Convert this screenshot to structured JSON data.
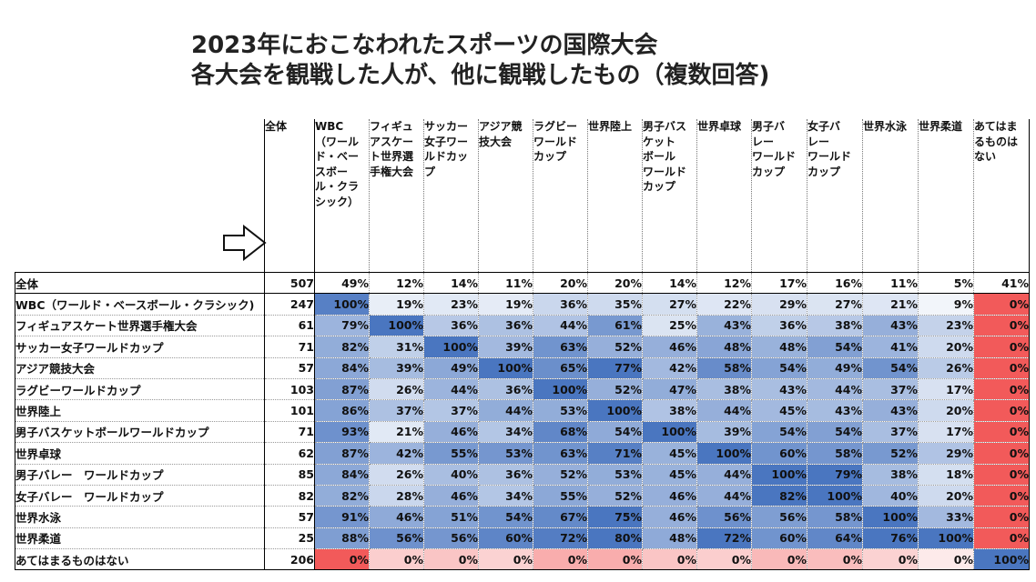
{
  "title": {
    "line1": "2023年におこなわれたスポーツの国際大会",
    "line2": "各大会を観戦した人が、他に観戦したもの（複数回答)"
  },
  "arrow_icon": "right-arrow-outline",
  "colors": {
    "high": "#4a76c0",
    "neutral": "#ffffff",
    "low": "#f25a5a"
  },
  "chart_data": {
    "type": "heatmap",
    "unit": "%",
    "total_label": "全体",
    "columns": [
      "WBC（ワールド・ベースボール・クラシック）",
      "フィギュアスケート世界選手権大会",
      "サッカー女子ワールドカップ",
      "アジア競技大会",
      "ラグビーワールドカップ",
      "世界陸上",
      "男子バスケットボールワールドカップ",
      "世界卓球",
      "男子バレーワールドカップ",
      "女子バレーワールドカップ",
      "世界水泳",
      "世界柔道",
      "あてはまるものはない"
    ],
    "column_headers": [
      [
        "WBC",
        "（ワール",
        "ド・ベー",
        "スボー",
        "ル・クラ",
        "シック）"
      ],
      [
        "フィギュ",
        "アスケー",
        "ト世界選",
        "手権大会"
      ],
      [
        "サッカー",
        "女子ワー",
        "ルドカッ",
        "プ"
      ],
      [
        "アジア競",
        "技大会"
      ],
      [
        "ラグビー",
        "ワールド",
        "カップ"
      ],
      [
        "世界陸上"
      ],
      [
        "男子バス",
        "ケット",
        "ボール",
        "ワールド",
        "カップ"
      ],
      [
        "世界卓球"
      ],
      [
        "男子バ",
        "レー",
        "ワールド",
        "カップ"
      ],
      [
        "女子バ",
        "レー",
        "ワールド",
        "カップ"
      ],
      [
        "世界水泳"
      ],
      [
        "世界柔道"
      ],
      [
        "あてはま",
        "るものは",
        "ない"
      ]
    ],
    "rows": [
      {
        "label": "全体",
        "n": 507,
        "values": [
          49,
          12,
          14,
          11,
          20,
          20,
          14,
          12,
          17,
          16,
          11,
          5,
          41
        ]
      },
      {
        "label": "WBC（ワールド・ベースボール・クラシック)",
        "n": 247,
        "values": [
          100,
          19,
          23,
          19,
          36,
          35,
          27,
          22,
          29,
          27,
          21,
          9,
          0
        ]
      },
      {
        "label": "フィギュアスケート世界選手権大会",
        "n": 61,
        "values": [
          79,
          100,
          36,
          36,
          44,
          61,
          25,
          43,
          36,
          38,
          43,
          23,
          0
        ]
      },
      {
        "label": "サッカー女子ワールドカップ",
        "n": 71,
        "values": [
          82,
          31,
          100,
          39,
          63,
          52,
          46,
          48,
          48,
          54,
          41,
          20,
          0
        ]
      },
      {
        "label": "アジア競技大会",
        "n": 57,
        "values": [
          84,
          39,
          49,
          100,
          65,
          77,
          42,
          58,
          54,
          49,
          54,
          26,
          0
        ]
      },
      {
        "label": "ラグビーワールドカップ",
        "n": 103,
        "values": [
          87,
          26,
          44,
          36,
          100,
          52,
          47,
          38,
          43,
          44,
          37,
          17,
          0
        ]
      },
      {
        "label": "世界陸上",
        "n": 101,
        "values": [
          86,
          37,
          37,
          44,
          53,
          100,
          38,
          44,
          45,
          43,
          43,
          20,
          0
        ]
      },
      {
        "label": "男子バスケットボールワールドカップ",
        "n": 71,
        "values": [
          93,
          21,
          46,
          34,
          68,
          54,
          100,
          39,
          54,
          54,
          37,
          17,
          0
        ]
      },
      {
        "label": "世界卓球",
        "n": 62,
        "values": [
          87,
          42,
          55,
          53,
          63,
          71,
          45,
          100,
          60,
          58,
          52,
          29,
          0
        ]
      },
      {
        "label": "男子バレー　ワールドカップ",
        "n": 85,
        "values": [
          84,
          26,
          40,
          36,
          52,
          53,
          45,
          44,
          100,
          79,
          38,
          18,
          0
        ]
      },
      {
        "label": "女子バレー　ワールドカップ",
        "n": 82,
        "values": [
          82,
          28,
          46,
          34,
          55,
          52,
          46,
          44,
          82,
          100,
          40,
          20,
          0
        ]
      },
      {
        "label": "世界水泳",
        "n": 57,
        "values": [
          91,
          46,
          51,
          54,
          67,
          75,
          46,
          56,
          56,
          58,
          100,
          33,
          0
        ]
      },
      {
        "label": "世界柔道",
        "n": 25,
        "values": [
          88,
          56,
          56,
          60,
          72,
          80,
          48,
          72,
          60,
          64,
          76,
          100,
          0
        ]
      },
      {
        "label": "あてはまるものはない",
        "n": 206,
        "values": [
          0,
          0,
          0,
          0,
          0,
          0,
          0,
          0,
          0,
          0,
          0,
          0,
          100
        ]
      }
    ]
  }
}
